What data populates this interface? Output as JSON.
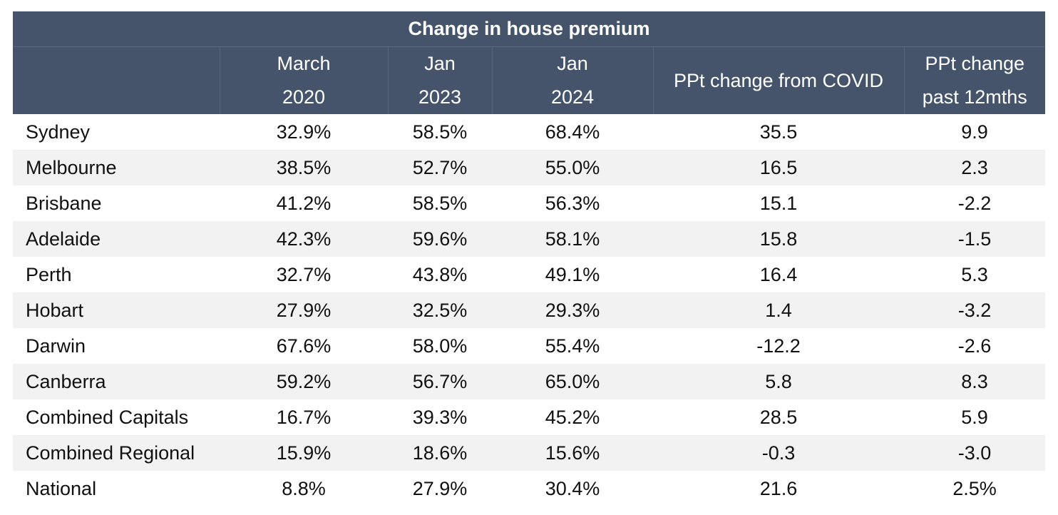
{
  "chart_data": {
    "type": "table",
    "title": "Change in house premium",
    "columns": [
      {
        "lines": [
          "",
          ""
        ]
      },
      {
        "lines": [
          "March",
          "2020"
        ]
      },
      {
        "lines": [
          "Jan",
          "2023"
        ]
      },
      {
        "lines": [
          "Jan",
          "2024"
        ]
      },
      {
        "lines": [
          "PPt change from COVID"
        ]
      },
      {
        "lines": [
          "PPt change",
          "past 12mths"
        ]
      }
    ],
    "rows": [
      [
        "Sydney",
        "32.9%",
        "58.5%",
        "68.4%",
        "35.5",
        "9.9"
      ],
      [
        "Melbourne",
        "38.5%",
        "52.7%",
        "55.0%",
        "16.5",
        "2.3"
      ],
      [
        "Brisbane",
        "41.2%",
        "58.5%",
        "56.3%",
        "15.1",
        "-2.2"
      ],
      [
        "Adelaide",
        "42.3%",
        "59.6%",
        "58.1%",
        "15.8",
        "-1.5"
      ],
      [
        "Perth",
        "32.7%",
        "43.8%",
        "49.1%",
        "16.4",
        "5.3"
      ],
      [
        "Hobart",
        "27.9%",
        "32.5%",
        "29.3%",
        "1.4",
        "-3.2"
      ],
      [
        "Darwin",
        "67.6%",
        "58.0%",
        "55.4%",
        "-12.2",
        "-2.6"
      ],
      [
        "Canberra",
        "59.2%",
        "56.7%",
        "65.0%",
        "5.8",
        "8.3"
      ],
      [
        "Combined Capitals",
        "16.7%",
        "39.3%",
        "45.2%",
        "28.5",
        "5.9"
      ],
      [
        "Combined Regional",
        "15.9%",
        "18.6%",
        "15.6%",
        "-0.3",
        "-3.0"
      ],
      [
        "National",
        "8.8%",
        "27.9%",
        "30.4%",
        "21.6",
        "2.5%"
      ]
    ],
    "colors": {
      "header_background": "#45546b",
      "header_text": "#ffffff",
      "stripe": "#f2f2f2"
    }
  }
}
